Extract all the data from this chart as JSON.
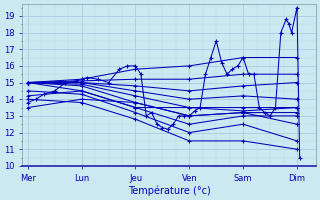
{
  "xlabel": "Température (°c)",
  "bg_color": "#cce8f0",
  "line_color": "#0000bb",
  "grid_major_color": "#aaccdd",
  "grid_minor_color": "#bbddee",
  "ylim": [
    10.0,
    19.7
  ],
  "yticks": [
    10,
    11,
    12,
    13,
    14,
    15,
    16,
    17,
    18,
    19
  ],
  "day_labels": [
    "Mer",
    "Lun",
    "Jeu",
    "Ven",
    "Sam",
    "Dim"
  ],
  "day_positions": [
    0,
    1,
    2,
    3,
    4,
    5
  ],
  "xlim": [
    -0.1,
    5.35
  ],
  "fan_lines": [
    {
      "x": [
        0.0,
        1.0,
        2.0,
        3.0,
        4.0,
        5.0
      ],
      "y": [
        15.0,
        15.2,
        15.8,
        16.0,
        16.5,
        16.5
      ]
    },
    {
      "x": [
        0.0,
        1.0,
        2.0,
        3.0,
        4.0,
        5.0
      ],
      "y": [
        15.0,
        15.1,
        15.2,
        15.2,
        15.5,
        15.5
      ]
    },
    {
      "x": [
        0.0,
        1.0,
        2.0,
        3.0,
        4.0,
        5.0
      ],
      "y": [
        15.0,
        15.0,
        14.8,
        14.5,
        14.8,
        15.0
      ]
    },
    {
      "x": [
        0.0,
        1.0,
        2.0,
        3.0,
        4.0,
        5.0
      ],
      "y": [
        15.0,
        15.0,
        14.5,
        14.0,
        14.2,
        14.0
      ]
    },
    {
      "x": [
        0.0,
        1.0,
        2.0,
        3.0,
        4.0,
        5.0
      ],
      "y": [
        15.0,
        14.9,
        14.2,
        13.5,
        13.5,
        13.5
      ]
    },
    {
      "x": [
        0.0,
        1.0,
        2.0,
        3.0,
        4.0,
        5.0
      ],
      "y": [
        15.0,
        14.8,
        13.8,
        13.0,
        13.2,
        13.2
      ]
    },
    {
      "x": [
        0.0,
        1.0,
        2.0,
        3.0,
        4.0,
        5.0
      ],
      "y": [
        15.0,
        14.5,
        13.5,
        12.5,
        13.0,
        13.0
      ]
    },
    {
      "x": [
        0.0,
        1.0,
        2.0,
        3.0,
        4.0,
        5.0
      ],
      "y": [
        14.5,
        14.3,
        13.2,
        12.0,
        12.5,
        11.5
      ]
    },
    {
      "x": [
        0.0,
        1.0,
        2.0,
        3.0,
        4.0,
        5.0
      ],
      "y": [
        14.0,
        13.8,
        12.8,
        11.5,
        11.5,
        11.0
      ]
    }
  ],
  "detail_line": {
    "x": [
      0.0,
      0.15,
      0.3,
      0.5,
      0.7,
      0.9,
      1.0,
      1.1,
      1.3,
      1.5,
      1.7,
      1.85,
      2.0,
      2.1,
      2.2,
      2.3,
      2.4,
      2.5,
      2.6,
      2.7,
      2.8,
      2.9,
      3.0,
      3.1,
      3.2,
      3.3,
      3.4,
      3.5,
      3.6,
      3.7,
      3.8,
      3.9,
      4.0,
      4.1,
      4.2,
      4.3,
      4.4,
      4.5,
      4.6,
      4.7,
      4.8,
      4.85,
      4.9,
      5.0,
      5.05
    ],
    "y": [
      13.8,
      14.0,
      14.3,
      14.5,
      15.0,
      15.1,
      15.2,
      15.3,
      15.2,
      15.0,
      15.8,
      16.0,
      16.0,
      15.5,
      13.0,
      13.2,
      12.5,
      12.3,
      12.2,
      12.5,
      13.0,
      13.0,
      13.0,
      13.3,
      13.5,
      15.5,
      16.5,
      17.5,
      16.2,
      15.5,
      15.8,
      16.0,
      16.5,
      15.5,
      15.5,
      13.5,
      13.2,
      13.0,
      13.5,
      18.0,
      18.8,
      18.5,
      18.0,
      19.5,
      10.5
    ]
  },
  "extra_lines": [
    {
      "x": [
        0.0,
        1.0,
        2.0,
        3.0,
        4.0,
        5.0
      ],
      "y": [
        14.2,
        14.5,
        13.5,
        13.5,
        13.3,
        13.5
      ]
    },
    {
      "x": [
        0.0,
        1.0,
        2.0,
        3.0,
        4.0,
        5.0
      ],
      "y": [
        13.5,
        14.0,
        13.8,
        13.0,
        13.2,
        12.5
      ]
    }
  ]
}
